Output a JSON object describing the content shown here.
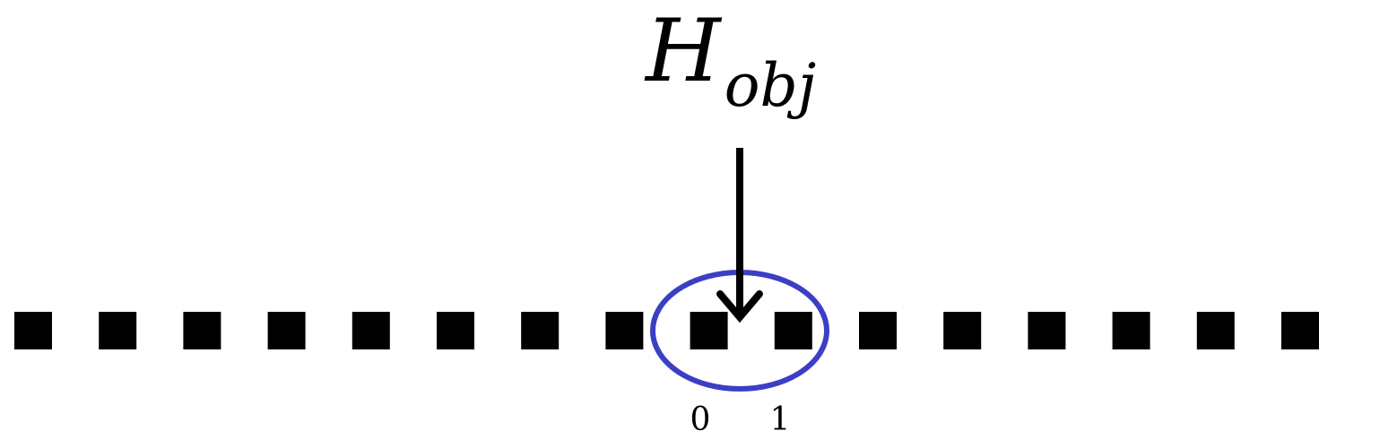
{
  "label": {
    "base": "H",
    "subscript": "obj"
  },
  "cell_count": 16,
  "index_labels": [
    "0",
    "1"
  ],
  "colors": {
    "cells": "#000000",
    "arrow": "#000000",
    "highlight": "#3b3fc4",
    "text": "#000000"
  }
}
